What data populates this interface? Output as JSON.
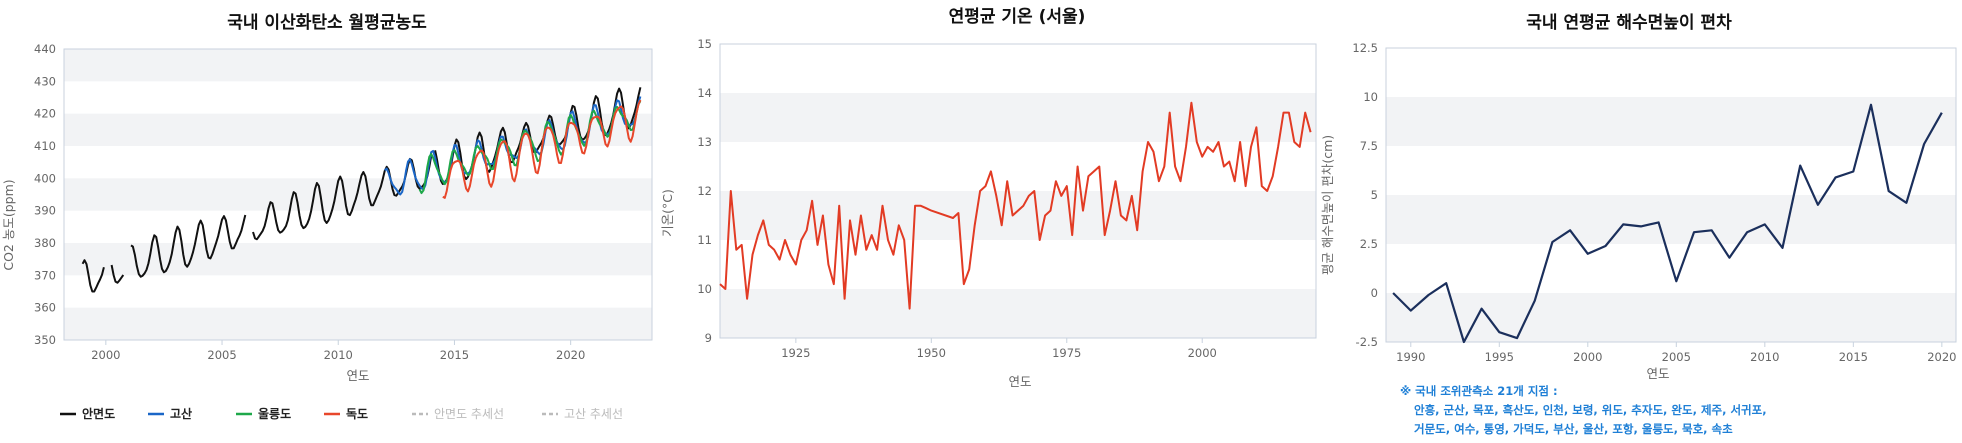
{
  "charts": {
    "co2": {
      "title": "국내 이산화탄소 월평균농도",
      "ylabel": "CO2 농도(ppm)",
      "xlabel": "연도"
    },
    "temp": {
      "title": "연평균 기온 (서울)",
      "ylabel": "기온(°C)",
      "xlabel": "연도"
    },
    "sea": {
      "title": "국내 연평균 해수면높이 편차",
      "ylabel": "평균 해수면높이 편차(cm)",
      "xlabel": "연도",
      "note_title": "※ 국내 조위관측소 21개 지점 :",
      "note_line1": "안흥, 군산, 목포, 흑산도, 인천, 보령, 위도, 추자도, 완도, 제주, 서귀포,",
      "note_line2": "거문도, 여수, 통영, 가덕도, 부산, 울산, 포항, 울릉도, 묵호, 속초"
    }
  },
  "colors": {
    "anmyeon": "#111111",
    "gosan": "#1a66c7",
    "ulleung": "#1ea84a",
    "dokdo": "#e8472b",
    "temp": "#e23b24",
    "sea": "#1b2f5c",
    "band": "#f2f3f5",
    "muted": "#bbbbbb"
  },
  "chart_data": [
    {
      "type": "line",
      "title": "국내 이산화탄소 월평균농도",
      "xlabel": "연도",
      "ylabel": "CO2 농도(ppm)",
      "xlim": [
        1998.2,
        2023.5
      ],
      "ylim": [
        350,
        440
      ],
      "xticks": [
        2000,
        2005,
        2010,
        2015,
        2020
      ],
      "yticks": [
        350,
        360,
        370,
        380,
        390,
        400,
        410,
        420,
        430,
        440
      ],
      "legend_position": "bottom-left",
      "series": [
        {
          "name": "안면도",
          "key": "anmyeon",
          "base_start": 1999.0,
          "base_end": 2023.0,
          "start_val": 368.5,
          "end_val": 422.5,
          "amp": 5.5,
          "gaps": [
            [
              1999.95,
              2000.2
            ],
            [
              2000.75,
              2001.0
            ],
            [
              2006.0,
              2006.3
            ],
            [
              2014.0,
              2014.1
            ]
          ],
          "notes": "seasonal cycle; 2000~2001 values around 362~378 with gaps"
        },
        {
          "name": "고산",
          "key": "gosan",
          "base_start": 2012.0,
          "base_end": 2023.0,
          "start_val": 398,
          "end_val": 420.5,
          "amp": 4.5
        },
        {
          "name": "울릉도",
          "key": "ulleung",
          "base_start": 2013.5,
          "base_end": 2023.0,
          "start_val": 401,
          "end_val": 420,
          "amp": 4.5
        },
        {
          "name": "독도",
          "key": "dokdo",
          "base_start": 2014.5,
          "base_end": 2023.0,
          "start_val": 400,
          "end_val": 419.5,
          "amp": 6.0
        },
        {
          "name": "안면도 추세선",
          "key": "trend1",
          "values": []
        },
        {
          "name": "고산 추세선",
          "key": "trend2",
          "values": []
        }
      ]
    },
    {
      "type": "line",
      "title": "연평균 기온 (서울)",
      "xlabel": "연도",
      "ylabel": "기온(°C)",
      "xlim": [
        1911,
        2021
      ],
      "ylim": [
        9,
        15
      ],
      "xticks": [
        1925,
        1950,
        1975,
        2000
      ],
      "yticks": [
        9,
        10,
        11,
        12,
        13,
        14,
        15
      ],
      "x": [
        1911,
        1912,
        1913,
        1914,
        1915,
        1916,
        1917,
        1918,
        1919,
        1920,
        1921,
        1922,
        1923,
        1924,
        1925,
        1926,
        1927,
        1928,
        1929,
        1930,
        1931,
        1932,
        1933,
        1934,
        1935,
        1936,
        1937,
        1938,
        1939,
        1940,
        1941,
        1942,
        1943,
        1944,
        1945,
        1946,
        1947,
        1948,
        1949,
        1950,
        1954,
        1955,
        1956,
        1957,
        1958,
        1959,
        1960,
        1961,
        1962,
        1963,
        1964,
        1965,
        1966,
        1967,
        1968,
        1969,
        1970,
        1971,
        1972,
        1973,
        1974,
        1975,
        1976,
        1977,
        1978,
        1979,
        1980,
        1981,
        1982,
        1983,
        1984,
        1985,
        1986,
        1987,
        1988,
        1989,
        1990,
        1991,
        1992,
        1993,
        1994,
        1995,
        1996,
        1997,
        1998,
        1999,
        2000,
        2001,
        2002,
        2003,
        2004,
        2005,
        2006,
        2007,
        2008,
        2009,
        2010,
        2011,
        2012,
        2013,
        2014,
        2015,
        2016,
        2017,
        2018,
        2019,
        2020
      ],
      "values": [
        10.1,
        10.0,
        12.0,
        10.8,
        10.9,
        9.8,
        10.7,
        11.1,
        11.4,
        10.9,
        10.8,
        10.6,
        11.0,
        10.7,
        10.5,
        11.0,
        11.2,
        11.8,
        10.9,
        11.5,
        10.5,
        10.1,
        11.7,
        9.8,
        11.4,
        10.7,
        11.5,
        10.8,
        11.1,
        10.8,
        11.7,
        11.0,
        10.7,
        11.3,
        11.0,
        9.6,
        11.7,
        11.7,
        11.65,
        11.6,
        11.45,
        11.55,
        10.1,
        10.4,
        11.3,
        12.0,
        12.1,
        12.4,
        11.9,
        11.3,
        12.2,
        11.5,
        11.6,
        11.7,
        11.9,
        12.0,
        11.0,
        11.5,
        11.6,
        12.2,
        11.9,
        12.1,
        11.1,
        12.5,
        11.6,
        12.3,
        12.4,
        12.5,
        11.1,
        11.6,
        12.2,
        11.5,
        11.4,
        11.9,
        11.2,
        12.4,
        13.0,
        12.8,
        12.2,
        12.5,
        13.6,
        12.5,
        12.2,
        12.9,
        13.8,
        13.0,
        12.7,
        12.9,
        12.8,
        13.0,
        12.5,
        12.6,
        12.2,
        13.0,
        12.1,
        12.9,
        13.3,
        12.1,
        12.0,
        12.3,
        12.9,
        13.6,
        13.6,
        13.0,
        12.9,
        13.6,
        13.2
      ]
    },
    {
      "type": "line",
      "title": "국내 연평균 해수면높이 편차",
      "xlabel": "연도",
      "ylabel": "평균 해수면높이 편차(cm)",
      "xlim": [
        1988.6,
        2020.8
      ],
      "ylim": [
        -2.5,
        12.5
      ],
      "xticks": [
        1990,
        1995,
        2000,
        2005,
        2010,
        2015,
        2020
      ],
      "yticks": [
        -2.5,
        0,
        2.5,
        5,
        7.5,
        10,
        12.5
      ],
      "x": [
        1989,
        1990,
        1991,
        1992,
        1993,
        1994,
        1995,
        1996,
        1997,
        1998,
        1999,
        2000,
        2001,
        2002,
        2003,
        2004,
        2005,
        2006,
        2007,
        2008,
        2009,
        2010,
        2011,
        2012,
        2013,
        2014,
        2015,
        2016,
        2017,
        2018,
        2019,
        2020
      ],
      "values": [
        0.0,
        -0.9,
        -0.1,
        0.5,
        -2.5,
        -0.8,
        -2.0,
        -2.3,
        -0.4,
        2.6,
        3.2,
        2.0,
        2.4,
        3.5,
        3.4,
        3.6,
        0.6,
        3.1,
        3.2,
        1.8,
        3.1,
        3.5,
        2.3,
        6.5,
        4.5,
        5.9,
        6.2,
        9.6,
        5.2,
        4.6,
        7.6,
        9.2
      ]
    }
  ]
}
